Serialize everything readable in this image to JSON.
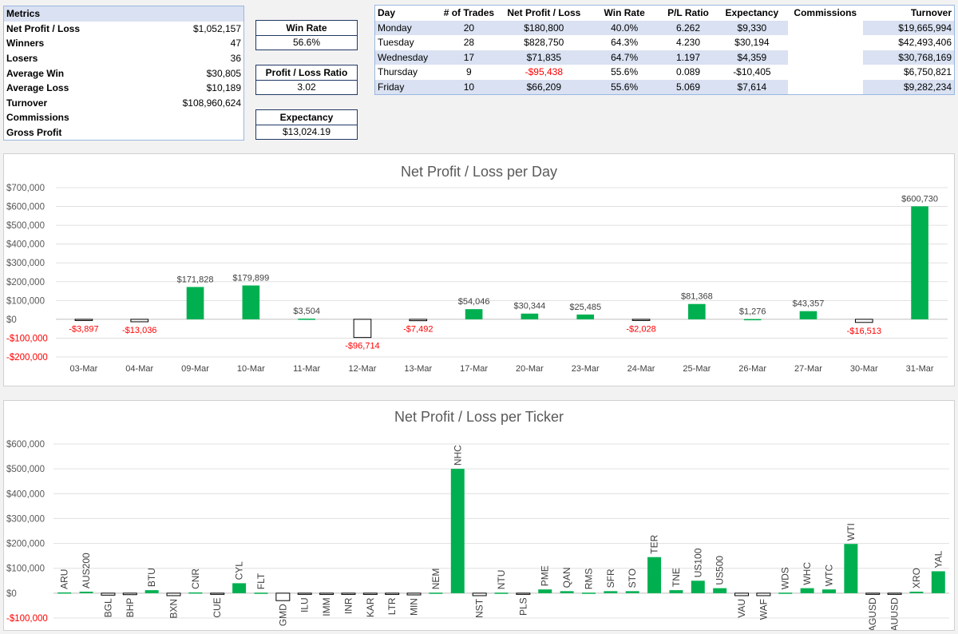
{
  "metrics": {
    "header": "Metrics",
    "rows": [
      {
        "label": "Net Profit / Loss",
        "value": "$1,052,157"
      },
      {
        "label": "Winners",
        "value": "47"
      },
      {
        "label": "Losers",
        "value": "36"
      },
      {
        "label": "Average Win",
        "value": "$30,805"
      },
      {
        "label": "Average Loss",
        "value": "$10,189"
      },
      {
        "label": "Turnover",
        "value": "$108,960,624"
      },
      {
        "label": "Commissions",
        "value": ""
      },
      {
        "label": "Gross Profit",
        "value": ""
      }
    ]
  },
  "kpis": {
    "win_rate": {
      "title": "Win Rate",
      "value": "56.6%"
    },
    "pl_ratio": {
      "title": "Profit / Loss Ratio",
      "value": "3.02"
    },
    "expectancy": {
      "title": "Expectancy",
      "value": "$13,024.19"
    }
  },
  "day_table": {
    "headers": [
      "Day",
      "# of Trades",
      "Net Profit / Loss",
      "Win Rate",
      "P/L Ratio",
      "Expectancy",
      "Commissions",
      "Turnover"
    ],
    "rows": [
      {
        "day": "Monday",
        "trades": "20",
        "net": "$180,800",
        "win_rate": "40.0%",
        "pl_ratio": "6.262",
        "expectancy": "$9,330",
        "commissions": "",
        "turnover": "$19,665,994"
      },
      {
        "day": "Tuesday",
        "trades": "28",
        "net": "$828,750",
        "win_rate": "64.3%",
        "pl_ratio": "4.230",
        "expectancy": "$30,194",
        "commissions": "",
        "turnover": "$42,493,406"
      },
      {
        "day": "Wednesday",
        "trades": "17",
        "net": "$71,835",
        "win_rate": "64.7%",
        "pl_ratio": "1.197",
        "expectancy": "$4,359",
        "commissions": "",
        "turnover": "$30,768,169"
      },
      {
        "day": "Thursday",
        "trades": "9",
        "net": "-$95,438",
        "win_rate": "55.6%",
        "pl_ratio": "0.089",
        "expectancy": "-$10,405",
        "commissions": "",
        "turnover": "$6,750,821"
      },
      {
        "day": "Friday",
        "trades": "10",
        "net": "$66,209",
        "win_rate": "55.6%",
        "pl_ratio": "5.069",
        "expectancy": "$7,614",
        "commissions": "",
        "turnover": "$9,282,234"
      }
    ]
  },
  "colors": {
    "positive_bar": "#00b050",
    "negative_label": "#ff0000",
    "header_band": "#d9e1f2"
  },
  "chart_data": [
    {
      "type": "bar",
      "title": "Net Profit / Loss per Day",
      "xlabel": "",
      "ylabel": "",
      "ylim": [
        -200000,
        700000
      ],
      "yticks": [
        -200000,
        -100000,
        0,
        100000,
        200000,
        300000,
        400000,
        500000,
        600000,
        700000
      ],
      "ytick_labels": [
        "-$200,000",
        "-$100,000",
        "$0",
        "$100,000",
        "$200,000",
        "$300,000",
        "$400,000",
        "$500,000",
        "$600,000",
        "$700,000"
      ],
      "categories": [
        "03-Mar",
        "04-Mar",
        "09-Mar",
        "10-Mar",
        "11-Mar",
        "12-Mar",
        "13-Mar",
        "17-Mar",
        "20-Mar",
        "23-Mar",
        "24-Mar",
        "25-Mar",
        "26-Mar",
        "27-Mar",
        "30-Mar",
        "31-Mar"
      ],
      "values": [
        -3897,
        -13036,
        171828,
        179899,
        3504,
        -96714,
        -7492,
        54046,
        30344,
        25485,
        -2028,
        81368,
        1276,
        43357,
        -16513,
        600730
      ],
      "data_labels": [
        "-$3,897",
        "-$13,036",
        "$171,828",
        "$179,899",
        "$3,504",
        "-$96,714",
        "-$7,492",
        "$54,046",
        "$30,344",
        "$25,485",
        "-$2,028",
        "$81,368",
        "$1,276",
        "$43,357",
        "-$16,513",
        "$600,730"
      ],
      "grid": true
    },
    {
      "type": "bar",
      "title": "Net Profit / Loss per Ticker",
      "xlabel": "",
      "ylabel": "",
      "ylim": [
        -100000,
        600000
      ],
      "yticks": [
        -100000,
        0,
        100000,
        200000,
        300000,
        400000,
        500000,
        600000
      ],
      "ytick_labels": [
        "-$100,000",
        "$0",
        "$100,000",
        "$200,000",
        "$300,000",
        "$400,000",
        "$500,000",
        "$600,000"
      ],
      "categories": [
        "ARU",
        "AUS200",
        "BGL",
        "BHP",
        "BTU",
        "BXN",
        "CNR",
        "CUE",
        "CYL",
        "FLT",
        "GMD",
        "ILU",
        "IMM",
        "INR",
        "KAR",
        "LTR",
        "MIN",
        "NEM",
        "NHC",
        "NST",
        "NTU",
        "PLS",
        "PME",
        "QAN",
        "RMS",
        "SFR",
        "STO",
        "TER",
        "TNE",
        "US100",
        "US500",
        "VAU",
        "WAF",
        "WDS",
        "WHC",
        "WTC",
        "WTI",
        "XAGUSD",
        "XAUUSD",
        "XRO",
        "YAL"
      ],
      "values": [
        3000,
        6000,
        -8000,
        -6000,
        12000,
        -10000,
        3000,
        -3000,
        40000,
        2000,
        -30000,
        -4000,
        -5000,
        -5000,
        -5000,
        -5000,
        -7000,
        2000,
        500000,
        -10000,
        2000,
        -4000,
        15000,
        8000,
        2000,
        8000,
        8000,
        145000,
        12000,
        50000,
        20000,
        -10000,
        -10000,
        2000,
        20000,
        15000,
        198000,
        -3000,
        -3000,
        6000,
        88000
      ],
      "grid": true
    }
  ]
}
